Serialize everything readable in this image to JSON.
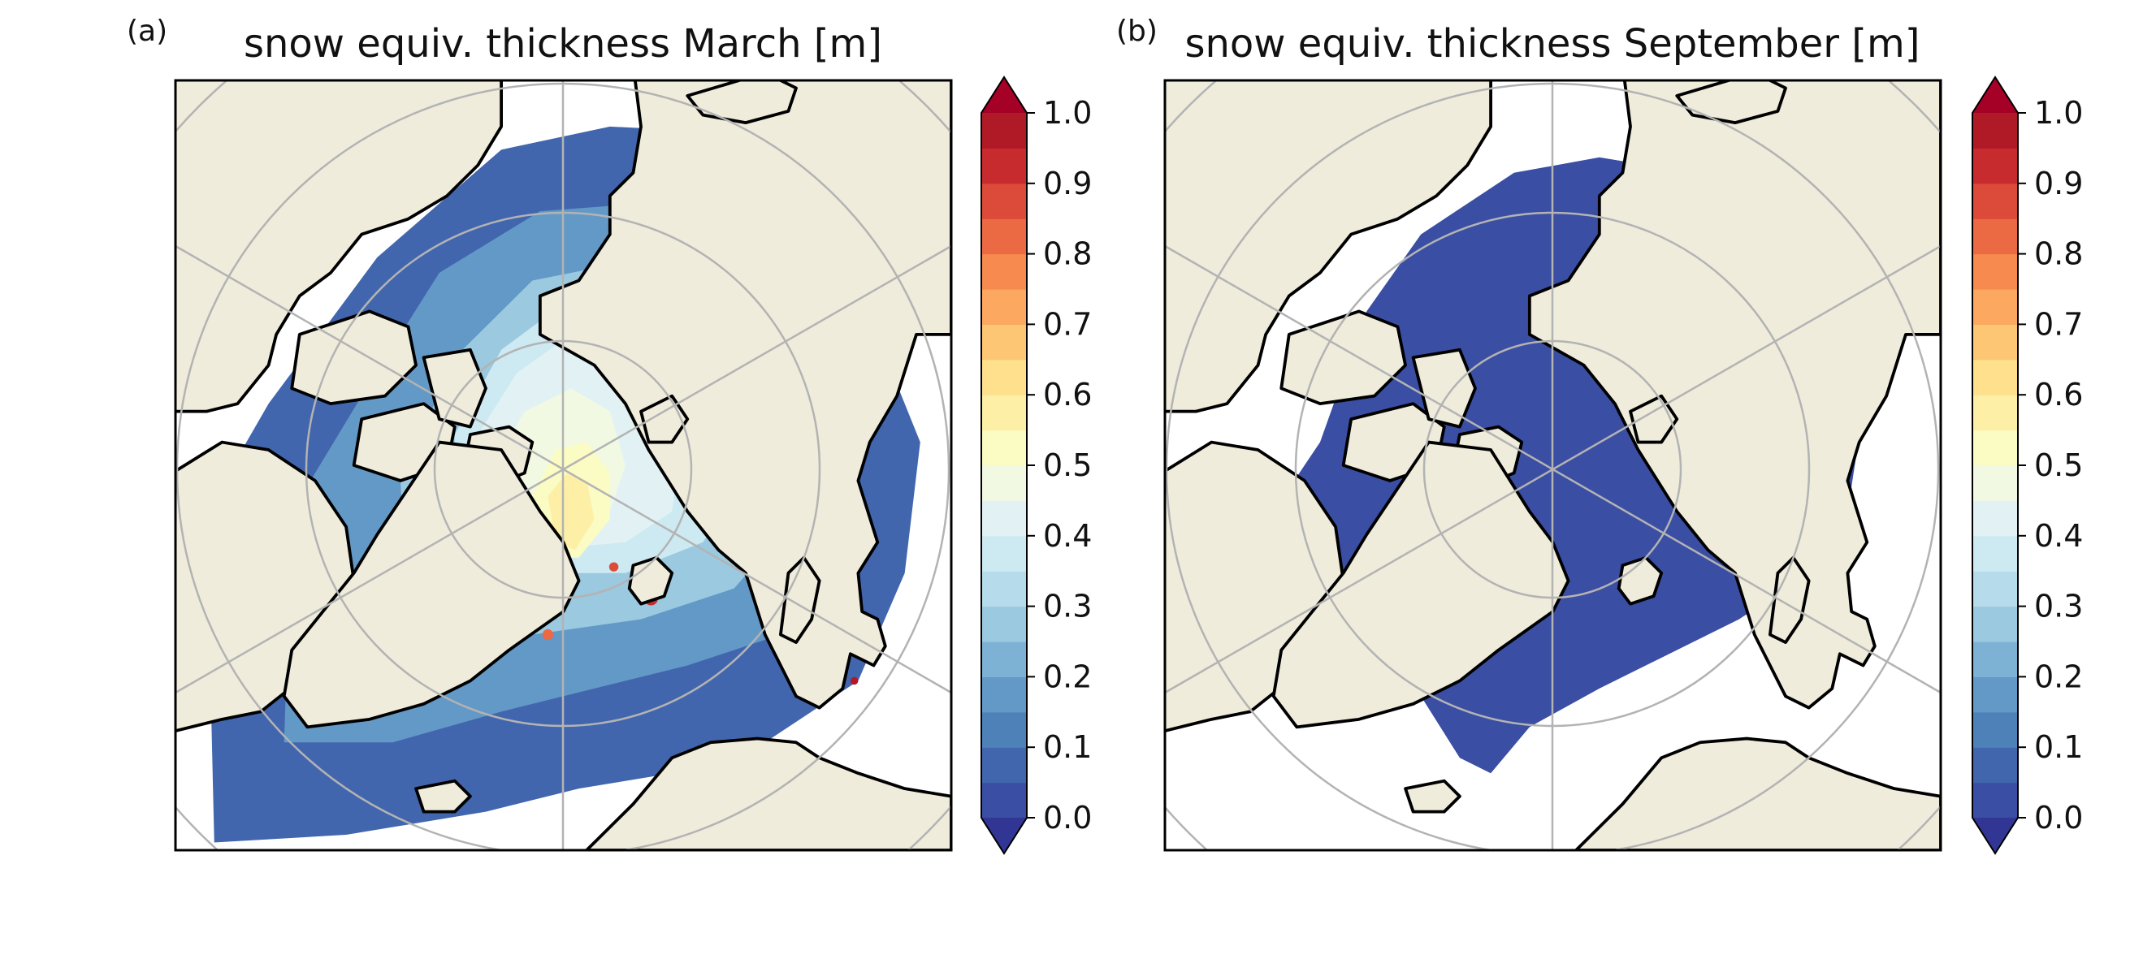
{
  "figure": {
    "panels": [
      {
        "label": "(a)",
        "title": "snow equiv. thickness March [m]",
        "field": "march"
      },
      {
        "label": "(b)",
        "title": "snow equiv. thickness September [m]",
        "field": "september"
      }
    ],
    "colorbar": {
      "levels": [
        0.0,
        0.05,
        0.1,
        0.15,
        0.2,
        0.25,
        0.3,
        0.35,
        0.4,
        0.45,
        0.5,
        0.55,
        0.6,
        0.65,
        0.7,
        0.75,
        0.8,
        0.85,
        0.9,
        0.95,
        1.0
      ],
      "tick_labels": [
        "0.0",
        "0.1",
        "0.2",
        "0.3",
        "0.4",
        "0.5",
        "0.6",
        "0.7",
        "0.8",
        "0.9",
        "1.0"
      ],
      "colors": [
        "#3a4ea3",
        "#4166ae",
        "#4f81b9",
        "#6399c6",
        "#7eb2d4",
        "#9bc9e0",
        "#b6dbea",
        "#cde9f1",
        "#e2f2f4",
        "#f1f9e3",
        "#fbfbc4",
        "#fdf0a6",
        "#fee08d",
        "#fdc675",
        "#fca860",
        "#f78a4f",
        "#ec6a43",
        "#dc4a39",
        "#c82b2e",
        "#b01a27"
      ],
      "under_color": "#313695",
      "over_color": "#a50026",
      "extend": "both"
    },
    "map_colors": {
      "land": "#efecdc",
      "ocean_no_ice": "#ffffff",
      "coastline": "#000000",
      "graticule": "#b3b3b3"
    }
  },
  "chart_data": {
    "type": "heatmap",
    "projection": "north-polar-stereographic",
    "variable": "snow equivalent thickness",
    "units": "m",
    "panels": [
      {
        "title": "snow equiv. thickness March [m]",
        "month": "March",
        "value_range_shown": [
          0.0,
          1.0
        ],
        "summary": "Broad snow cover over Arctic sea ice; highest (~0.45-0.6 m) north of Greenland and the Canadian Archipelago, decreasing to ~0.05-0.2 m toward marginal seas; isolated maxima near 1.0 m along coasts."
      },
      {
        "title": "snow equiv. thickness September [m]",
        "month": "September",
        "value_range_shown": [
          0.0,
          0.05
        ],
        "summary": "Ice-covered central Arctic shows nearly uniform minimal snow (0.0-0.05 m); no snow elsewhere."
      }
    ],
    "colorbar_ticks": [
      0.0,
      0.1,
      0.2,
      0.3,
      0.4,
      0.5,
      0.6,
      0.7,
      0.8,
      0.9,
      1.0
    ]
  }
}
